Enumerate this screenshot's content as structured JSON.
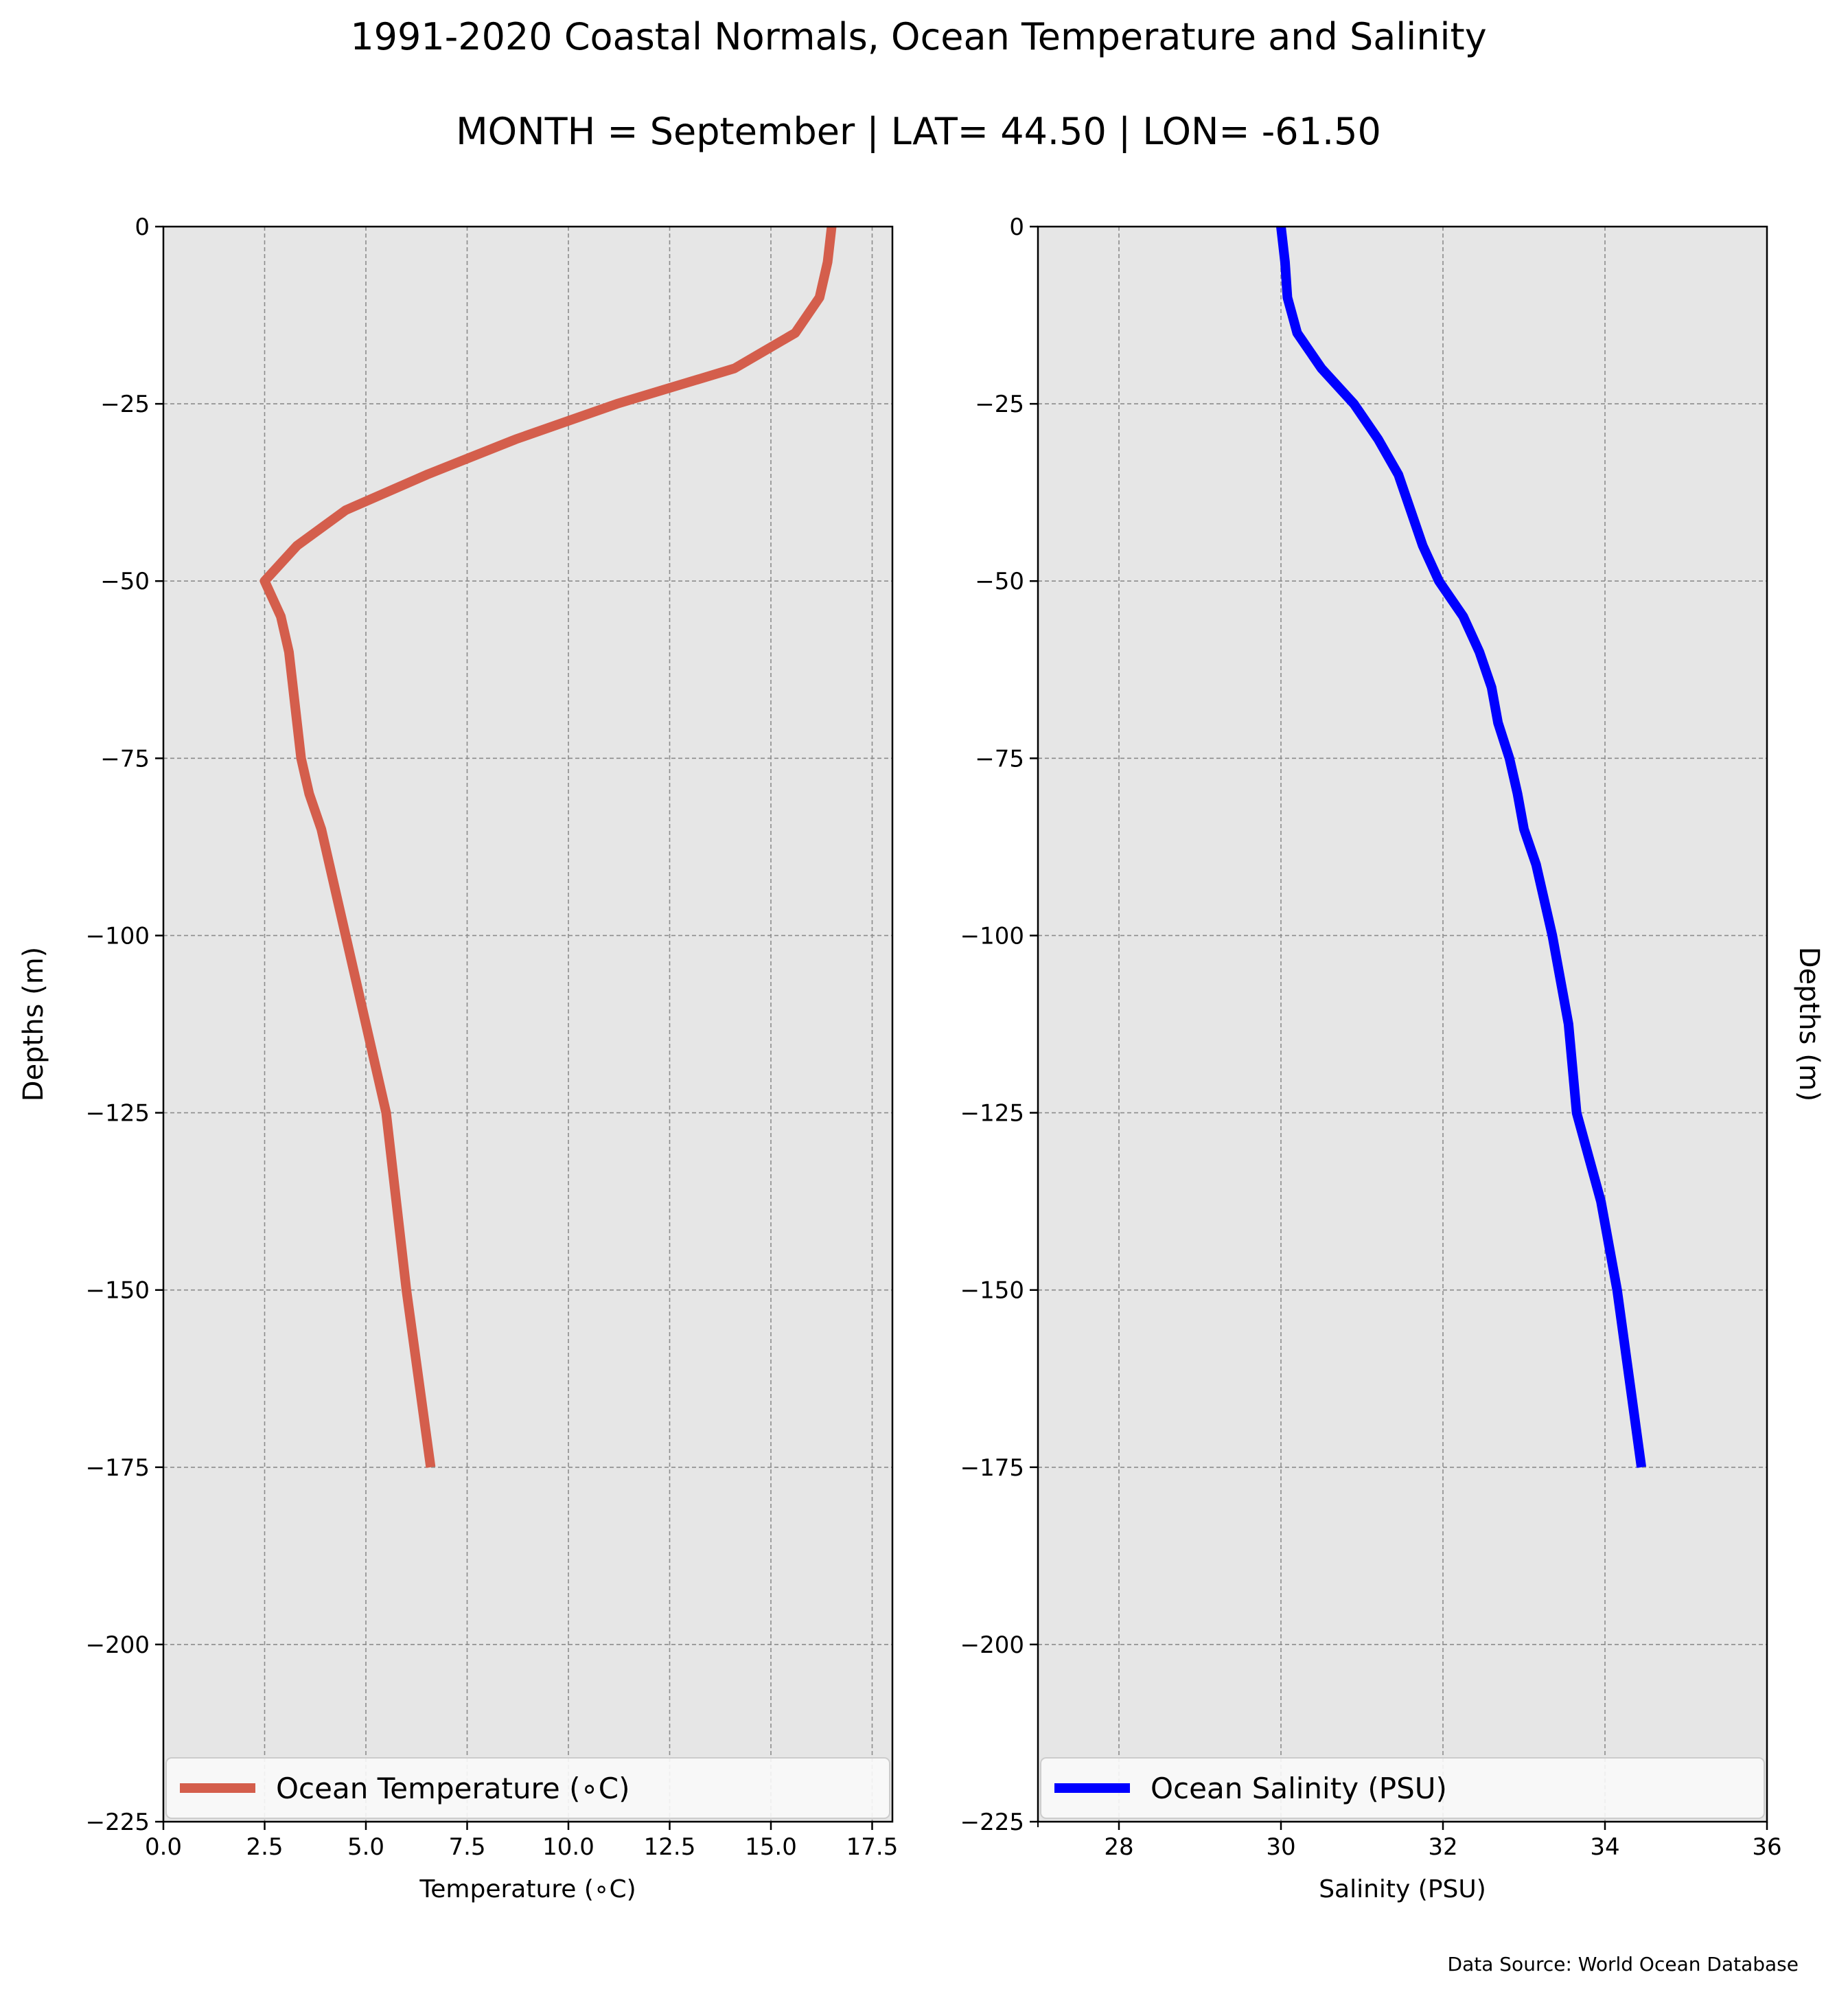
{
  "title": "1991-2020 Coastal Normals, Ocean Temperature and Salinity",
  "subtitle": "MONTH = September | LAT= 44.50 | LON= -61.50",
  "source": "Data Source: World Ocean Database",
  "colors": {
    "background": "#e6e6e6",
    "grid": "#8c8c8c",
    "temperature": "#d45e4c",
    "salinity": "#0000ff"
  },
  "chart_data": [
    {
      "type": "line",
      "xlabel": "Temperature (∘C)",
      "ylabel": "Depths (m)",
      "xlim": [
        0,
        18
      ],
      "ylim": [
        -225,
        0
      ],
      "xticks": [
        "0.0",
        "2.5",
        "5.0",
        "7.5",
        "10.0",
        "12.5",
        "15.0",
        "17.5"
      ],
      "yticks": [
        "0",
        "−25",
        "−50",
        "−75",
        "−100",
        "−125",
        "−150",
        "−175",
        "−200",
        "−225"
      ],
      "grid": true,
      "legend_position": "lower center",
      "series": [
        {
          "name": "Ocean Temperature (∘C)",
          "color": "#d45e4c",
          "x": [
            16.5,
            16.4,
            16.2,
            15.6,
            14.1,
            11.2,
            8.7,
            6.5,
            4.5,
            3.3,
            2.5,
            2.9,
            3.1,
            3.2,
            3.3,
            3.4,
            3.6,
            3.9,
            4.1,
            4.3,
            4.5,
            5.0,
            5.5,
            6.0,
            6.3,
            6.6
          ],
          "y": [
            0,
            -5,
            -10,
            -15,
            -20,
            -25,
            -30,
            -35,
            -40,
            -45,
            -50,
            -55,
            -60,
            -65,
            -70,
            -75,
            -80,
            -85,
            -90,
            -95,
            -100,
            -112.5,
            -125,
            -150,
            -162.5,
            -175
          ]
        }
      ]
    },
    {
      "type": "line",
      "xlabel": "Salinity (PSU)",
      "ylabel": "Depths (m)",
      "xlim": [
        27,
        36
      ],
      "ylim": [
        -225,
        0
      ],
      "xticks": [
        "28",
        "30",
        "32",
        "34",
        "36"
      ],
      "yticks": [
        "0",
        "−25",
        "−50",
        "−75",
        "−100",
        "−125",
        "−150",
        "−175",
        "−200",
        "−225"
      ],
      "grid": true,
      "legend_position": "lower center",
      "series": [
        {
          "name": "Ocean Salinity (PSU)",
          "color": "#0000ff",
          "x": [
            30.0,
            30.05,
            30.08,
            30.2,
            30.5,
            30.9,
            31.2,
            31.45,
            31.6,
            31.75,
            31.95,
            32.25,
            32.45,
            32.6,
            32.68,
            32.82,
            32.92,
            33.0,
            33.15,
            33.25,
            33.35,
            33.55,
            33.65,
            33.95,
            34.15,
            34.45
          ],
          "y": [
            0,
            -5,
            -10,
            -15,
            -20,
            -25,
            -30,
            -35,
            -40,
            -45,
            -50,
            -55,
            -60,
            -65,
            -70,
            -75,
            -80,
            -85,
            -90,
            -95,
            -100,
            -112.5,
            -125,
            -137.5,
            -150,
            -175
          ]
        }
      ]
    }
  ]
}
